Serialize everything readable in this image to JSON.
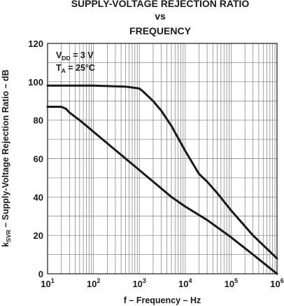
{
  "chart_data": {
    "type": "line",
    "title_lines": [
      "SUPPLY-VOLTAGE REJECTION RATIO",
      "vs",
      "FREQUENCY"
    ],
    "xlabel": "f – Frequency – Hz",
    "ylabel_prefix": "k",
    "ylabel_sub": "SVR",
    "ylabel_rest": " – Supply-Voltage Rejection Ratio – dB",
    "x_scale": "log",
    "xlim": [
      10,
      1000000
    ],
    "ylim": [
      0,
      120
    ],
    "grid": true,
    "x_ticks": [
      {
        "base": "10",
        "exp": "1"
      },
      {
        "base": "10",
        "exp": "2"
      },
      {
        "base": "10",
        "exp": "3"
      },
      {
        "base": "10",
        "exp": "4"
      },
      {
        "base": "10",
        "exp": "5"
      },
      {
        "base": "10",
        "exp": "6"
      }
    ],
    "y_ticks": [
      "0",
      "20",
      "40",
      "60",
      "80",
      "100",
      "120"
    ],
    "conditions": {
      "vdd": {
        "prefix": "V",
        "sub": "DD",
        "text": " = 3 V"
      },
      "ta": {
        "prefix": "T",
        "sub": "A",
        "text": " = 25°C"
      }
    },
    "series": [
      {
        "x": [
          10,
          100,
          500,
          1000,
          1200,
          2000,
          3000,
          5000,
          10000,
          20000,
          30000,
          50000,
          100000,
          300000,
          1000000
        ],
        "y": [
          98,
          98,
          97.5,
          96.5,
          95,
          90,
          85,
          77,
          64,
          52,
          48,
          42,
          33,
          20,
          8
        ]
      },
      {
        "x": [
          10,
          20,
          25,
          30,
          50,
          100,
          200,
          500,
          1000,
          2000,
          5000,
          10000,
          30000,
          100000,
          300000,
          1000000
        ],
        "y": [
          87,
          87,
          86,
          84,
          80,
          74,
          68,
          60,
          54,
          48,
          40,
          35,
          28,
          19,
          10,
          0
        ]
      }
    ]
  }
}
